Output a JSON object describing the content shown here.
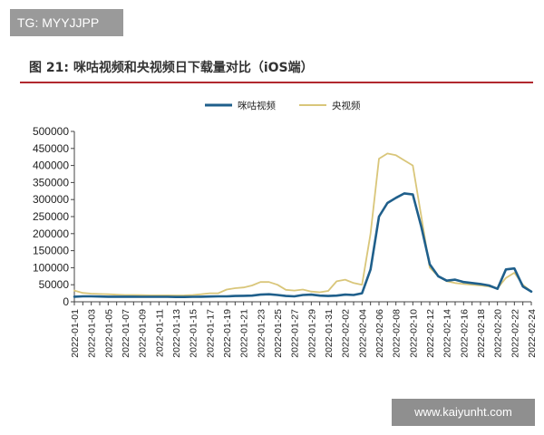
{
  "watermarks": {
    "top": "TG: MYYJJPP",
    "bottom": "www.kaiyunht.com"
  },
  "figure_title": "图 21: 咪咕视频和央视频日下载量对比（iOS端）",
  "colors": {
    "migu": "#1f5f8b",
    "cctv": "#d9c67a",
    "title_rule": "#b1282e"
  },
  "chart_data": {
    "type": "line",
    "title": "图 21: 咪咕视频和央视频日下载量对比（iOS端）",
    "xlabel": "",
    "ylabel": "",
    "ylim": [
      0,
      500000
    ],
    "yticks": [
      0,
      50000,
      100000,
      150000,
      200000,
      250000,
      300000,
      350000,
      400000,
      450000,
      500000
    ],
    "ytick_labels": [
      "0",
      "50000",
      "100000",
      "150000",
      "200000",
      "250000",
      "300000",
      "350000",
      "400000",
      "450000",
      "500000"
    ],
    "legend_position": "top-center",
    "grid": false,
    "x": [
      "2022-01-01",
      "2022-01-02",
      "2022-01-03",
      "2022-01-04",
      "2022-01-05",
      "2022-01-06",
      "2022-01-07",
      "2022-01-08",
      "2022-01-09",
      "2022-01-10",
      "2022-01-11",
      "2022-01-12",
      "2022-01-13",
      "2022-01-14",
      "2022-01-15",
      "2022-01-16",
      "2022-01-17",
      "2022-01-18",
      "2022-01-19",
      "2022-01-20",
      "2022-01-21",
      "2022-01-22",
      "2022-01-23",
      "2022-01-24",
      "2022-01-25",
      "2022-01-26",
      "2022-01-27",
      "2022-01-28",
      "2022-01-29",
      "2022-01-30",
      "2022-01-31",
      "2022-02-01",
      "2022-02-02",
      "2022-02-03",
      "2022-02-04",
      "2022-02-05",
      "2022-02-06",
      "2022-02-07",
      "2022-02-08",
      "2022-02-09",
      "2022-02-10",
      "2022-02-11",
      "2022-02-12",
      "2022-02-13",
      "2022-02-14",
      "2022-02-15",
      "2022-02-16",
      "2022-02-17",
      "2022-02-18",
      "2022-02-19",
      "2022-02-20",
      "2022-02-21",
      "2022-02-22",
      "2022-02-23",
      "2022-02-24"
    ],
    "xtick_labels": [
      "2022-01-01",
      "2022-01-03",
      "2022-01-05",
      "2022-01-07",
      "2022-01-09",
      "2022-01-11",
      "2022-01-13",
      "2022-01-15",
      "2022-01-17",
      "2022-01-19",
      "2022-01-21",
      "2022-01-23",
      "2022-01-25",
      "2022-01-27",
      "2022-01-29",
      "2022-01-31",
      "2022-02-02",
      "2022-02-04",
      "2022-02-06",
      "2022-02-08",
      "2022-02-10",
      "2022-02-12",
      "2022-02-14",
      "2022-02-16",
      "2022-02-18",
      "2022-02-20",
      "2022-02-22",
      "2022-02-24"
    ],
    "series": [
      {
        "name": "咪咕视频",
        "color": "#1f5f8b",
        "values": [
          15000,
          16000,
          16000,
          15500,
          15000,
          15000,
          15000,
          15000,
          14500,
          14500,
          14500,
          14500,
          14000,
          14000,
          14500,
          15000,
          15500,
          16000,
          16000,
          17000,
          17500,
          18000,
          21000,
          22000,
          20000,
          17000,
          16000,
          20000,
          21000,
          18000,
          17000,
          18000,
          21000,
          20000,
          25000,
          95000,
          250000,
          290000,
          305000,
          318000,
          315000,
          220000,
          110000,
          75000,
          62000,
          65000,
          58000,
          55000,
          52000,
          48000,
          38000,
          95000,
          98000,
          45000,
          30000
        ]
      },
      {
        "name": "央视频",
        "color": "#d9c67a",
        "values": [
          33000,
          26000,
          24000,
          23000,
          22000,
          21000,
          20000,
          20000,
          19500,
          19000,
          19000,
          19000,
          18500,
          19000,
          20000,
          22000,
          25000,
          25000,
          36000,
          40000,
          42000,
          48000,
          58000,
          58000,
          50000,
          35000,
          33000,
          36000,
          30000,
          28000,
          32000,
          60000,
          65000,
          55000,
          50000,
          200000,
          420000,
          435000,
          430000,
          415000,
          400000,
          250000,
          100000,
          75000,
          60000,
          55000,
          52000,
          50000,
          48000,
          45000,
          40000,
          70000,
          85000,
          50000,
          30000
        ]
      }
    ]
  }
}
